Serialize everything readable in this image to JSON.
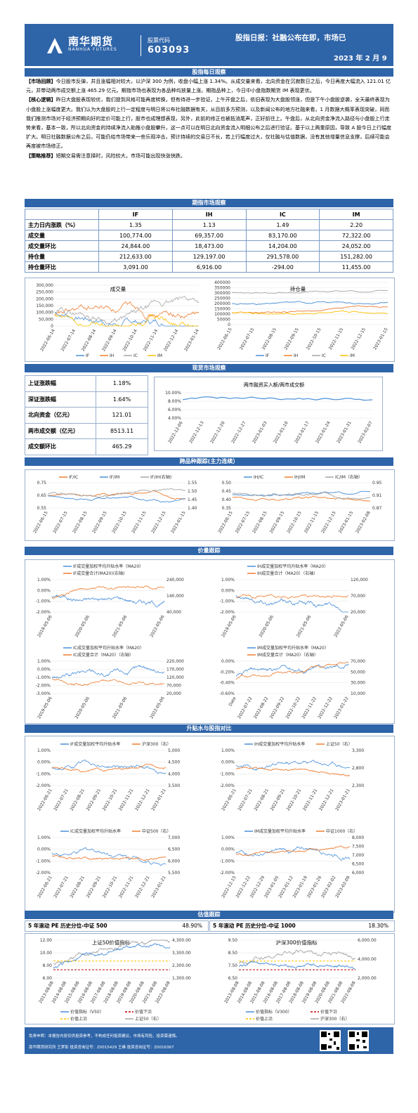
{
  "header": {
    "logo_cn": "南华期货",
    "logo_en": "NANHUA FUTURES",
    "stock_label": "股票代码",
    "stock_code": "603093",
    "title": "股指日报：社融公布在即，市场已",
    "date": "2023 年 2 月 9"
  },
  "sections": {
    "daily": "股指每日观察",
    "futures": "期指市场观察",
    "spot": "现货市场观察",
    "spread": "跨品种跟踪(主力连续）",
    "basis": "价量跟踪",
    "premium": "升贴水与股指对比",
    "valuation": "估值跟踪"
  },
  "commentary": {
    "p1_tag": "【市场回顾】",
    "p1": "今日股市反弹，并且涨幅相对较大，以沪深 300 为例，收盘小幅上涨 1.34%。从成交量来看，北向资金在沉寂数日之后，今日再度大幅流入 121.01 亿元，并带动两市成交额上涨 465.29 亿元。期指市场也表现为各品种均放量上涨。期指品种上，今日中小盘指数期货 IM 表现更优。",
    "p2_tag": "【核心逻辑】",
    "p2": "昨日大盘股表现较优，我们提到风格可能再度转换，但有待进一步验证，上午开盘之后，依旧表现为大盘股领涨，但是下午小盘股逆袭，全天最终表现为小盘股上涨幅度更大。我们认为大盘股的上行一定程度与明日将公布社融数据有关，从目前多方预测，以及新闻公布的地方社融来看，1 月数据大概率表现突破，同而我们推测市场对于经济预期向好的定价可能上行，股市也成理想表现，另外，此前的修正也被抵消尾声，正好前往上。午盘后，从北向资金净流入路径与小盘股上行走势来看，基本一致，所以北向资金的持续净流入助推小盘股攀升，这一点可以在明日北向资金流入明细公布之后进行验证。基于以上两重原因，导致 A 股今日上行幅度扩大。明日社融数据公布之后，可能仍给市场带来一些乐观冲击，预计持续的交易日不长，若上行幅度过大，仅社融与估值数据，没有其他增量信息支撑，后续可能会再度被市场修正。",
    "p3_tag": "【策略推荐】",
    "p3": "短期交易需注意择时，风险较大，市场可能出现快涨快跌。"
  },
  "futures_table": {
    "headers": [
      "",
      "IF",
      "IH",
      "IC",
      "IM"
    ],
    "rows": [
      [
        "主力日内涨跌（%）",
        "1.35",
        "1.13",
        "1.49",
        "2.20"
      ],
      [
        "成交量",
        "100,774.00",
        "69,357.00",
        "83,170.00",
        "72,322.00"
      ],
      [
        "成交量环比",
        "24,844.00",
        "18,473.00",
        "14,204.00",
        "24,052.00"
      ],
      [
        "持仓量",
        "212,633.00",
        "129,197.00",
        "291,578.00",
        "151,282.00"
      ],
      [
        "持仓量环比",
        "3,091.00",
        "6,916.00",
        "-294.00",
        "11,455.00"
      ]
    ]
  },
  "volume_chart": {
    "title": "成交量",
    "yticks": [
      "300,000",
      "250,000",
      "200,000",
      "150,000",
      "100,000",
      "50,000",
      "0"
    ],
    "xticks": [
      "2022-06-14",
      "2022-07-14",
      "2022-08-14",
      "2022-09-14",
      "2022-10-14",
      "2022-11-14",
      "2022-12-14",
      "2023-01-14"
    ],
    "legend": [
      "IF",
      "IH",
      "IC",
      "IM"
    ]
  },
  "oi_chart": {
    "title": "持仓量",
    "yticks": [
      "400000",
      "350000",
      "300000",
      "250000",
      "200000",
      "150000",
      "100000",
      "50000",
      "0"
    ],
    "xticks": [
      "2022-06-15",
      "2022-07-15",
      "2022-08-15",
      "2022-09-15",
      "2022-10-15",
      "2022-11-15",
      "2022-12-15",
      "2023-01-15"
    ],
    "legend": [
      "IF",
      "IH",
      "IC",
      "IM"
    ]
  },
  "spot_table": [
    [
      "上证涨跌幅",
      "1.18%"
    ],
    [
      "深证涨跌幅",
      "1.64%"
    ],
    [
      "北向资金（亿元）",
      "121.01"
    ],
    [
      "两市成交额（亿元）",
      "8513.11"
    ],
    [
      "成交额环比",
      "465.29"
    ]
  ],
  "margin_chart": {
    "title": "两市融资买入额/两市成交额",
    "yticks": [
      "10.00%",
      "8.00%",
      "6.00%",
      "4.00%"
    ],
    "xticks": [
      "2022-12-06",
      "2022-12-13",
      "2022-12-20",
      "2022-12-27",
      "2023-01-03",
      "2023-01-10",
      "2023-01-17",
      "2023-01-24",
      "2023-01-31",
      "2023-02-07"
    ]
  },
  "spread_left": {
    "legend": [
      "IF/IC",
      "IF/IM",
      "IF/IH(右轴)"
    ],
    "yleft": [
      "0.75",
      "0.65",
      "0.55"
    ],
    "yright": [
      "1.55",
      "1.50",
      "1.45",
      "1.40"
    ],
    "xticks": [
      "2022-06-15",
      "2022-07-15",
      "2022-08-15",
      "2022-09-15",
      "2022-10-15",
      "2022-11-15",
      "2022-12-15",
      "2023-01-15"
    ]
  },
  "spread_right": {
    "legend": [
      "IH/IC",
      "IH/IM",
      "IC/IM（右轴）"
    ],
    "yleft": [
      "0.50",
      "0.45",
      "0.40",
      "0.35"
    ],
    "yright": [
      "0.95",
      "0.91",
      "0.87"
    ],
    "xticks": [
      "2022-06-15",
      "2022-07-15",
      "2022-08-15",
      "2022-09-15",
      "2022-10-15",
      "2022-11-15",
      "2022-12-15",
      "2023-01-15",
      "2023-02-08"
    ]
  },
  "basis_charts": [
    {
      "l1": "IF成交量加权平均升贴水率（MA20）",
      "l2": "IF成交量合计(MA20)(右轴)",
      "yleft": [
        "1.00%",
        "0.00%",
        "-1.00%",
        "-2.00%"
      ],
      "yright": [
        "240,000",
        "140,000",
        "40,000"
      ],
      "xticks": [
        "2019-05-06",
        "2020-05-06",
        "2021-05-06",
        "2022-05-06"
      ]
    },
    {
      "l1": "IH成交量加权平均升贴水率（MA20）",
      "l2": "IH成交量合计（MA20）（右轴）",
      "yleft": [
        "1.00%",
        "0.00%",
        "-1.00%",
        "-2.00%"
      ],
      "yright": [
        "120,000",
        "70,000",
        "20,000"
      ],
      "xticks": [
        "2019-05-06",
        "2020-05-06",
        "2021-05-06",
        "2022-05-06"
      ]
    },
    {
      "l1": "IC成交量加权平均升贴水率（MA20）",
      "l2": "IC成交量合计（MA20）（右轴）",
      "yleft": [
        "1.00%",
        "0.00%",
        "-1.00%",
        "-2.00%",
        "-3.00%"
      ],
      "yright": [
        "220,000",
        "170,000",
        "120,000",
        "70,000",
        "20,000"
      ],
      "xticks": [
        "2019-05-06",
        "2020-05-06",
        "2021-05-06",
        "2022-05-06"
      ]
    },
    {
      "l1": "IM成交量加权平均升贴水率（MA20）",
      "l2": "IM成交量合计（MA20）（右轴）",
      "yleft": [
        "0.00%",
        "-0.20%",
        "-0.40%",
        "-0.60%"
      ],
      "yright": [
        "70,000",
        "50,000",
        "30,000",
        "10,000"
      ],
      "xticks": [
        "Date",
        "2022-07-22",
        "2022-08-22",
        "2022-09-22",
        "2022-10-22",
        "2022-11-22",
        "2022-12-22",
        "2023-01-22"
      ]
    }
  ],
  "premium_charts": [
    {
      "l1": "IF成交量加权平均升贴水率",
      "l2": "沪深300（右）",
      "yleft": [
        "1.00%",
        "0.00%",
        "-1.00%",
        "-2.00%"
      ],
      "yright": [
        "5,000",
        "4,500",
        "4,000",
        "3,500"
      ],
      "xticks": [
        "2022-06-21",
        "2022-07-21",
        "2022-08-21",
        "2022-09-21",
        "2022-10-21",
        "2022-11-21",
        "2022-12-21",
        "2023-01-21"
      ]
    },
    {
      "l1": "IH成交量加权平均升贴水率",
      "l2": "上证50（右）",
      "yleft": [
        "1.00%",
        "0.00%",
        "-1.00%",
        "-2.00%"
      ],
      "yright": [
        "3,300",
        "2,800",
        "2,300"
      ],
      "xticks": [
        "2022-06-21",
        "2022-07-21",
        "2022-08-21",
        "2022-09-21",
        "2022-10-21",
        "2022-11-21",
        "2022-12-21",
        "2023-01-21"
      ]
    },
    {
      "l1": "IC成交量加权平均升贴水率",
      "l2": "中证500（右）",
      "yleft": [
        "1.00%",
        "0.00%",
        "-1.00%",
        "-2.00%"
      ],
      "yright": [
        "7,000",
        "6,500",
        "6,000",
        "5,500"
      ],
      "xticks": [
        "2022-06-21",
        "2022-07-21",
        "2022-08-21",
        "2022-09-21",
        "2022-10-21",
        "2022-11-21",
        "2022-12-21",
        "2023-01-21"
      ]
    },
    {
      "l1": "IM成交量加权平均升贴水率",
      "l2": "中证1000（右）",
      "yleft": [
        "1.00%",
        "0.00%",
        "-1.00%",
        "-2.00%"
      ],
      "yright": [
        "8,000",
        "7,500",
        "7,000",
        "6,500",
        "6,000"
      ],
      "xticks": [
        "2022-12-15",
        "2022-12-22",
        "2022-12-29",
        "2023-01-05",
        "2023-01-12",
        "2023-01-19",
        "2023-01-26",
        "2023-02-02",
        "2023-02-09"
      ]
    }
  ],
  "pe_row": {
    "left_label": "5 年滚动 PE 历史分位-中证 500",
    "left_value": "48.90%",
    "right_label": "5 年滚动 PE 历史分位-中证 1000",
    "right_value": "18.30%"
  },
  "valuation_charts": [
    {
      "title": "上证50价值指标",
      "yleft": [
        "12.00",
        "10.00",
        "8.00",
        "6.00"
      ],
      "yright": [
        "4,300.00",
        "3,300.00",
        "2,300.00",
        "1,300.00"
      ],
      "xticks": [
        "2013-08-08",
        "2014-08-08",
        "2015-08-08",
        "2016-08-08",
        "2017-08-08",
        "2018-08-08",
        "2019-08-08",
        "2020-08-08",
        "2021-08-08",
        "2022-08-08"
      ],
      "legend": [
        "价值指标（V50）",
        "价值下沿",
        "价值上沿",
        "上证50（右）"
      ]
    },
    {
      "title": "沪深300价值指标",
      "yleft": [
        "9.50",
        "8.50",
        "7.50",
        "6.50"
      ],
      "yright": [
        "6,000.00",
        "4,000.00",
        "2,000.00"
      ],
      "xticks": [
        "2013-08-08",
        "2014-08-08",
        "2015-08-08",
        "2016-08-08",
        "2017-08-08",
        "2018-08-08",
        "2019-08-08",
        "2020-08-08",
        "2021-08-08",
        "2022-08-08"
      ],
      "legend": [
        "价值指标（V300）",
        "价值下沿",
        "价值上沿",
        "沪深300（右）"
      ]
    }
  ],
  "footer": {
    "line1": "免责申明：本报告内容仅供投资参考，不构成任何投资建议，市场有风险，投资需谨慎。",
    "line2": "南华期货研究所  王梦影  投资咨询证号：Z0015429    王峰  投资咨询证号：Z0016367"
  },
  "colors": {
    "primary": "#2e64a8",
    "if": "#4a90d9",
    "ih": "#ed7d31",
    "ic": "#a5a5a5",
    "im": "#ffc000"
  }
}
